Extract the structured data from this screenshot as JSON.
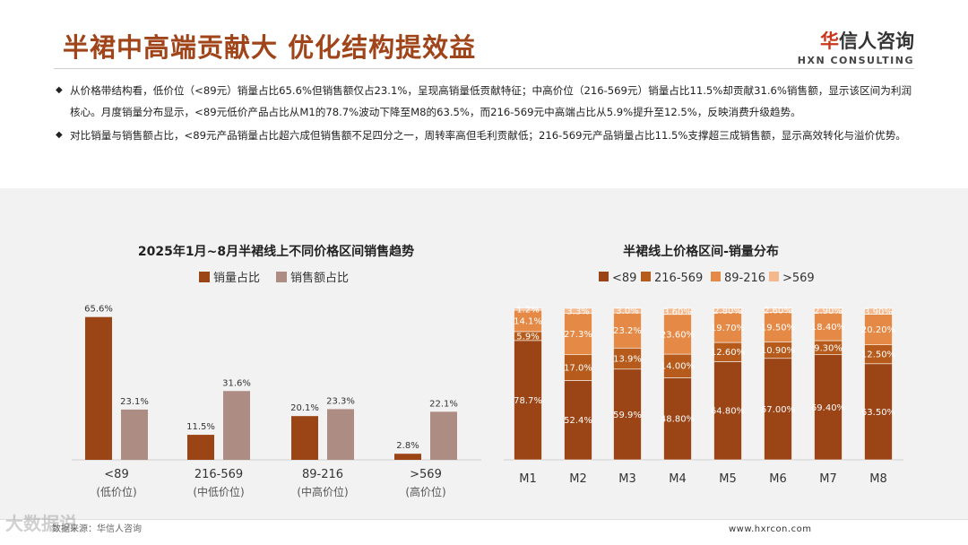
{
  "header": {
    "title": "半裙中高端贡献大 优化结构提效益",
    "logo_cn_prefix": "华",
    "logo_cn_rest": "信人咨询",
    "logo_en": "HXN CONSULTING"
  },
  "bullets": [
    "从价格带结构看，低价位（<89元）销量占比65.6%但销售额仅占23.1%，呈现高销量低贡献特征；中高价位（216-569元）销量占比11.5%却贡献31.6%销售额，显示该区间为利润核心。月度销量分布显示，<89元低价产品占比从M1的78.7%波动下降至M8的63.5%，而216-569元中高端占比从5.9%提升至12.5%，反映消费升级趋势。",
    "对比销量与销售额占比，<89元产品销量占比超六成但销售额不足四分之一，周转率高但毛利贡献低；216-569元产品销量占比11.5%支撑超三成销售额，显示高效转化与溢价优势。"
  ],
  "chart_data": [
    {
      "type": "bar",
      "title": "2025年1月~8月半裙线上不同价格区间销售趋势",
      "categories": [
        "<89",
        "216-569",
        "89-216",
        ">569"
      ],
      "category_sublabels": [
        "(低价位)",
        "(中低价位)",
        "(中高价位)",
        "(高价位)"
      ],
      "series": [
        {
          "name": "销量占比",
          "values": [
            65.6,
            11.5,
            20.1,
            2.8
          ],
          "labels": [
            "65.6%",
            "11.5%",
            "20.1%",
            "2.8%"
          ],
          "color": "#9b4415"
        },
        {
          "name": "销售额占比",
          "values": [
            23.1,
            31.6,
            23.3,
            22.1
          ],
          "labels": [
            "23.1%",
            "31.6%",
            "23.3%",
            "22.1%"
          ],
          "color": "#ad8c84"
        }
      ],
      "ylim": [
        0,
        70
      ],
      "legend": "top-center"
    },
    {
      "type": "bar",
      "stacked": true,
      "title": "半裙线上价格区间-销量分布",
      "categories": [
        "M1",
        "M2",
        "M3",
        "M4",
        "M5",
        "M6",
        "M7",
        "M8"
      ],
      "series": [
        {
          "name": "<89",
          "color": "#9b4415",
          "values": [
            78.7,
            52.4,
            59.9,
            48.8,
            64.8,
            67.0,
            69.4,
            63.5
          ],
          "labels": [
            "78.7%",
            "52.4%",
            "59.9%",
            "48.80%",
            "64.80%",
            "67.00%",
            "69.40%",
            "63.50%"
          ]
        },
        {
          "name": "216-569",
          "color": "#b65b1c",
          "values": [
            5.9,
            17.0,
            13.9,
            14.0,
            12.6,
            10.9,
            9.3,
            12.5
          ],
          "labels": [
            "5.9%",
            "17.0%",
            "13.9%",
            "14.00%",
            "12.60%",
            "10.90%",
            "9.30%",
            "12.50%"
          ]
        },
        {
          "name": "89-216",
          "color": "#e58a46",
          "values": [
            14.1,
            27.3,
            23.2,
            23.6,
            19.7,
            19.5,
            18.4,
            20.2
          ],
          "labels": [
            "14.1%",
            "27.3%",
            "23.2%",
            "23.60%",
            "19.70%",
            "19.50%",
            "18.40%",
            "20.20%"
          ]
        },
        {
          "name": ">569",
          "color": "#f5b78c",
          "values": [
            1.2,
            3.3,
            3.0,
            3.6,
            2.8,
            2.6,
            2.9,
            3.9
          ],
          "labels": [
            "1.2%",
            "3.3%",
            "3.0%",
            "3.60%",
            "2.80%",
            "2.60%",
            "2.90%",
            "3.90%"
          ]
        }
      ],
      "ylim": [
        0,
        100
      ],
      "legend": "top-center"
    }
  ],
  "footer": {
    "source": "数据来源：华信人咨询",
    "url": "www.hxrcon.com",
    "watermark": "大数据说"
  }
}
